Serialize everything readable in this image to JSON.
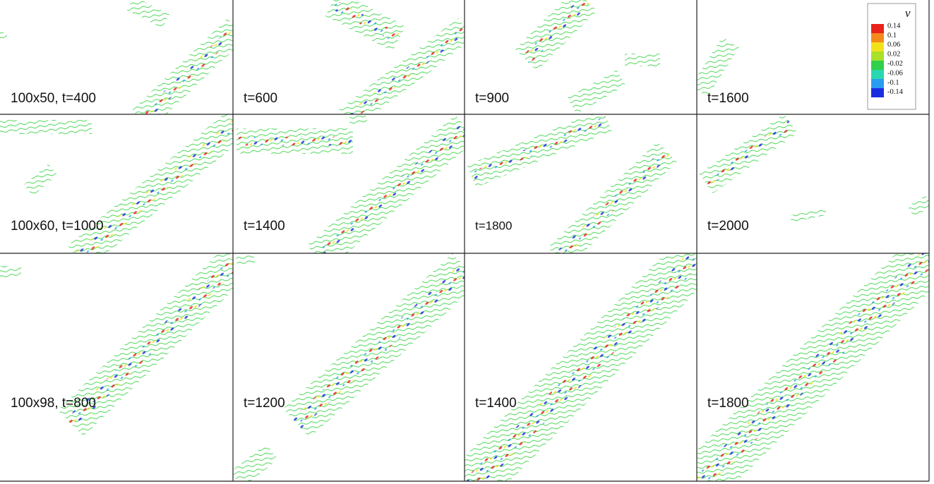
{
  "panels": [
    {
      "label": "100x50, t=400"
    },
    {
      "label": "t=600"
    },
    {
      "label": "t=900"
    },
    {
      "label": "t=1600"
    },
    {
      "label": "100x60, t=1000"
    },
    {
      "label": "t=1400"
    },
    {
      "label": "t=1800"
    },
    {
      "label": "t=2000"
    },
    {
      "label": "100x98, t=800"
    },
    {
      "label": "t=1200"
    },
    {
      "label": "t=1400"
    },
    {
      "label": "t=1800"
    }
  ],
  "legend": {
    "title": "v",
    "labels": [
      "0.14",
      "0.1",
      "0.06",
      "0.02",
      "-0.02",
      "-0.06",
      "-0.1",
      "-0.14"
    ],
    "colors": [
      "#e8231a",
      "#f58a1c",
      "#f2e21a",
      "#a8e02a",
      "#2fd04a",
      "#2ad8b0",
      "#2a9cf0",
      "#1a2ee0"
    ]
  }
}
